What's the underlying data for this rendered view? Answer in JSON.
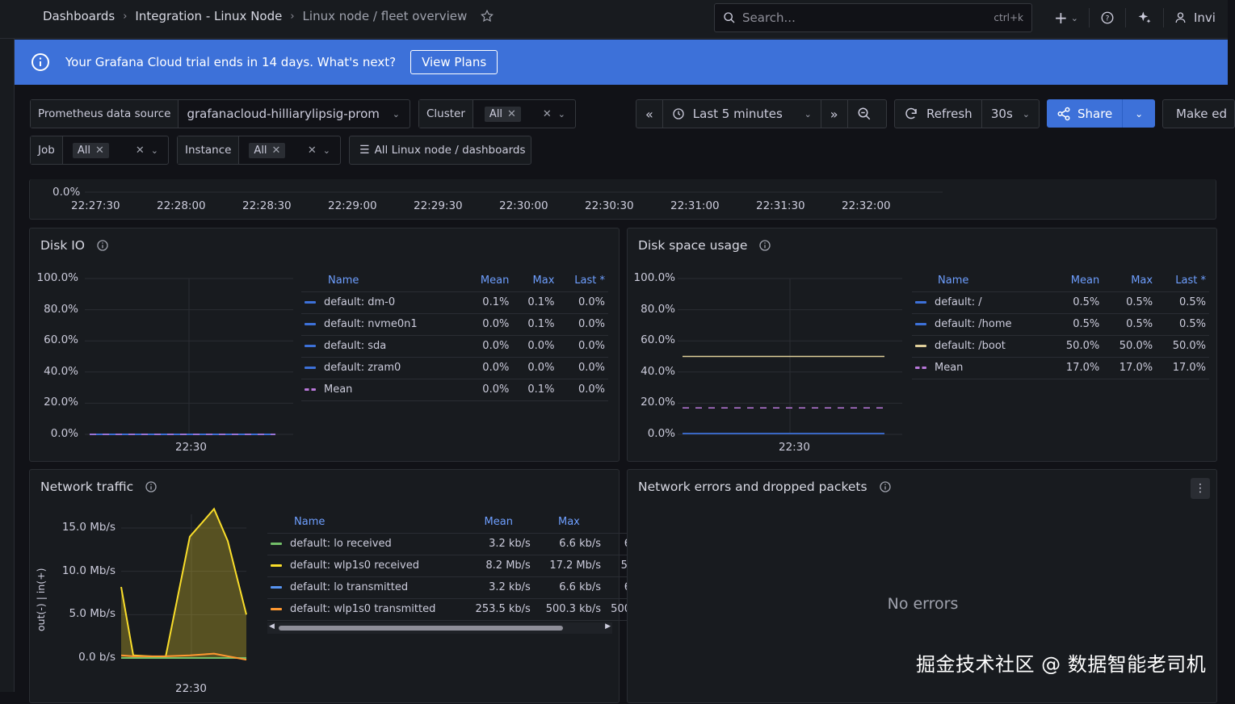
{
  "breadcrumbs": [
    "Dashboards",
    "Integration - Linux Node",
    "Linux node / fleet overview"
  ],
  "search": {
    "placeholder": "Search...",
    "shortcut": "ctrl+k"
  },
  "topbar": {
    "invite_label": "Invi"
  },
  "banner": {
    "message": "Your Grafana Cloud trial ends in 14 days. What's next?",
    "button": "View Plans"
  },
  "controls": {
    "datasource_label": "Prometheus data source",
    "datasource_value": "grafanacloud-hilliarylipsig-prom",
    "cluster_label": "Cluster",
    "cluster_value": "All",
    "job_label": "Job",
    "job_value": "All",
    "instance_label": "Instance",
    "instance_value": "All",
    "dashboards_link": "All Linux node / dashboards",
    "time_range": "Last 5 minutes",
    "refresh_label": "Refresh",
    "refresh_interval": "30s",
    "share_label": "Share",
    "make_editable_label": "Make ed"
  },
  "top_panel": {
    "y_tick": "0.0%",
    "x_ticks": [
      "22:27:30",
      "22:28:00",
      "22:28:30",
      "22:29:00",
      "22:29:30",
      "22:30:00",
      "22:30:30",
      "22:31:00",
      "22:31:30",
      "22:32:00"
    ]
  },
  "disk_io": {
    "title": "Disk IO",
    "y_ticks": [
      "100.0%",
      "80.0%",
      "60.0%",
      "40.0%",
      "20.0%",
      "0.0%"
    ],
    "x_tick": "22:30",
    "legend_headers": [
      "Name",
      "Mean",
      "Max",
      "Last *"
    ],
    "rows": [
      {
        "name": "default: dm-0",
        "mean": "0.1%",
        "max": "0.1%",
        "last": "0.0%",
        "color": "#3d71d9",
        "dashed": false
      },
      {
        "name": "default: nvme0n1",
        "mean": "0.0%",
        "max": "0.1%",
        "last": "0.0%",
        "color": "#3d71d9",
        "dashed": false
      },
      {
        "name": "default: sda",
        "mean": "0.0%",
        "max": "0.0%",
        "last": "0.0%",
        "color": "#3d71d9",
        "dashed": false
      },
      {
        "name": "default: zram0",
        "mean": "0.0%",
        "max": "0.0%",
        "last": "0.0%",
        "color": "#3d71d9",
        "dashed": false
      },
      {
        "name": "Mean",
        "mean": "0.0%",
        "max": "0.1%",
        "last": "0.0%",
        "color": "#b877d9",
        "dashed": true
      }
    ]
  },
  "disk_space": {
    "title": "Disk space usage",
    "y_ticks": [
      "100.0%",
      "80.0%",
      "60.0%",
      "40.0%",
      "20.0%",
      "0.0%"
    ],
    "x_tick": "22:30",
    "legend_headers": [
      "Name",
      "Mean",
      "Max",
      "Last *"
    ],
    "rows": [
      {
        "name": "default: /",
        "mean": "0.5%",
        "max": "0.5%",
        "last": "0.5%",
        "color": "#3d71d9",
        "dashed": false
      },
      {
        "name": "default: /home",
        "mean": "0.5%",
        "max": "0.5%",
        "last": "0.5%",
        "color": "#3d71d9",
        "dashed": false
      },
      {
        "name": "default: /boot",
        "mean": "50.0%",
        "max": "50.0%",
        "last": "50.0%",
        "color": "#e0cf9a",
        "dashed": false
      },
      {
        "name": "Mean",
        "mean": "17.0%",
        "max": "17.0%",
        "last": "17.0%",
        "color": "#b877d9",
        "dashed": true
      }
    ]
  },
  "network_traffic": {
    "title": "Network traffic",
    "y_axis_label": "out(-) | in(+)",
    "y_ticks": [
      "15.0 Mb/s",
      "10.0 Mb/s",
      "5.0 Mb/s",
      "0.0 b/s"
    ],
    "x_tick": "22:30",
    "legend_headers": [
      "Name",
      "Mean",
      "Max"
    ],
    "rows": [
      {
        "name": "default: lo received",
        "mean": "3.2 kb/s",
        "max": "6.6 kb/s",
        "last": "6",
        "color": "#73bf69"
      },
      {
        "name": "default: wlp1s0 received",
        "mean": "8.2 Mb/s",
        "max": "17.2 Mb/s",
        "last": "5.",
        "color": "#fade2a"
      },
      {
        "name": "default: lo transmitted",
        "mean": "3.2 kb/s",
        "max": "6.6 kb/s",
        "last": "6",
        "color": "#5794f2"
      },
      {
        "name": "default: wlp1s0 transmitted",
        "mean": "253.5 kb/s",
        "max": "500.3 kb/s",
        "last": "500",
        "color": "#ff9830"
      }
    ]
  },
  "network_errors": {
    "title": "Network errors and dropped packets",
    "empty_text": "No errors"
  },
  "watermark": "掘金技术社区 @ 数据智能老司机",
  "chart_data": [
    {
      "type": "line",
      "title": "Disk IO",
      "ylim": [
        0,
        100
      ],
      "x": [
        "22:30"
      ],
      "series": [
        {
          "name": "default: dm-0",
          "values": [
            0.0
          ]
        },
        {
          "name": "default: nvme0n1",
          "values": [
            0.0
          ]
        },
        {
          "name": "default: sda",
          "values": [
            0.0
          ]
        },
        {
          "name": "default: zram0",
          "values": [
            0.0
          ]
        },
        {
          "name": "Mean",
          "values": [
            0.0
          ]
        }
      ]
    },
    {
      "type": "line",
      "title": "Disk space usage",
      "ylim": [
        0,
        100
      ],
      "x": [
        "22:30"
      ],
      "series": [
        {
          "name": "default: /",
          "values": [
            0.5
          ]
        },
        {
          "name": "default: /home",
          "values": [
            0.5
          ]
        },
        {
          "name": "default: /boot",
          "values": [
            50.0
          ]
        },
        {
          "name": "Mean",
          "values": [
            17.0
          ]
        }
      ]
    },
    {
      "type": "area",
      "title": "Network traffic",
      "ylabel": "out(-) | in(+)",
      "series": [
        {
          "name": "default: wlp1s0 received",
          "values": [
            8.2,
            0.3,
            0.1,
            14.0,
            17.2,
            13.5,
            5.0
          ]
        },
        {
          "name": "default: lo received",
          "values": [
            0.0,
            0.0,
            0.0,
            0.0,
            0.0,
            0.0,
            0.0
          ]
        },
        {
          "name": "default: wlp1s0 transmitted",
          "values": [
            0.3,
            0.2,
            0.2,
            0.3,
            0.5,
            0.2,
            -0.2
          ]
        }
      ]
    }
  ]
}
